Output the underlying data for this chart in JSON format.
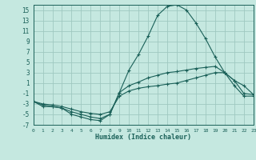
{
  "background_color": "#c5e8e0",
  "grid_color": "#9fc8c0",
  "line_color": "#1a6058",
  "xlabel": "Humidex (Indice chaleur)",
  "xlim": [
    0,
    23
  ],
  "ylim": [
    -7,
    16
  ],
  "xticks": [
    0,
    1,
    2,
    3,
    4,
    5,
    6,
    7,
    8,
    9,
    10,
    11,
    12,
    13,
    14,
    15,
    16,
    17,
    18,
    19,
    20,
    21,
    22,
    23
  ],
  "yticks": [
    -7,
    -5,
    -3,
    -1,
    1,
    3,
    5,
    7,
    9,
    11,
    13,
    15
  ],
  "curve1_x": [
    0,
    1,
    2,
    3,
    4,
    5,
    6,
    7,
    8,
    9,
    10,
    11,
    12,
    13,
    14,
    15,
    16,
    17,
    18,
    19,
    20,
    21,
    22,
    23
  ],
  "curve1_y": [
    -2.5,
    -3.5,
    -3.5,
    -3.8,
    -5.0,
    -5.5,
    -6.0,
    -6.2,
    -5.0,
    -0.8,
    3.5,
    6.5,
    10.0,
    14.0,
    15.7,
    16.0,
    15.0,
    12.5,
    9.5,
    6.0,
    3.0,
    1.5,
    0.5,
    -1.2
  ],
  "curve2_x": [
    0,
    1,
    2,
    3,
    4,
    5,
    6,
    7,
    8,
    9,
    10,
    11,
    12,
    13,
    14,
    15,
    16,
    17,
    18,
    19,
    20,
    21,
    22,
    23
  ],
  "curve2_y": [
    -2.5,
    -3.2,
    -3.5,
    -3.8,
    -4.5,
    -5.0,
    -5.5,
    -5.8,
    -5.0,
    -0.8,
    0.5,
    1.2,
    2.0,
    2.5,
    3.0,
    3.2,
    3.5,
    3.8,
    4.0,
    4.2,
    3.0,
    1.5,
    -1.0,
    -1.2
  ],
  "curve3_x": [
    0,
    1,
    2,
    3,
    4,
    5,
    6,
    7,
    8,
    9,
    10,
    11,
    12,
    13,
    14,
    15,
    16,
    17,
    18,
    19,
    20,
    21,
    22,
    23
  ],
  "curve3_y": [
    -2.5,
    -3.0,
    -3.2,
    -3.5,
    -4.0,
    -4.5,
    -4.8,
    -5.0,
    -4.5,
    -1.5,
    -0.5,
    0.0,
    0.3,
    0.5,
    0.8,
    1.0,
    1.5,
    2.0,
    2.5,
    3.0,
    3.0,
    0.5,
    -1.5,
    -1.5
  ]
}
